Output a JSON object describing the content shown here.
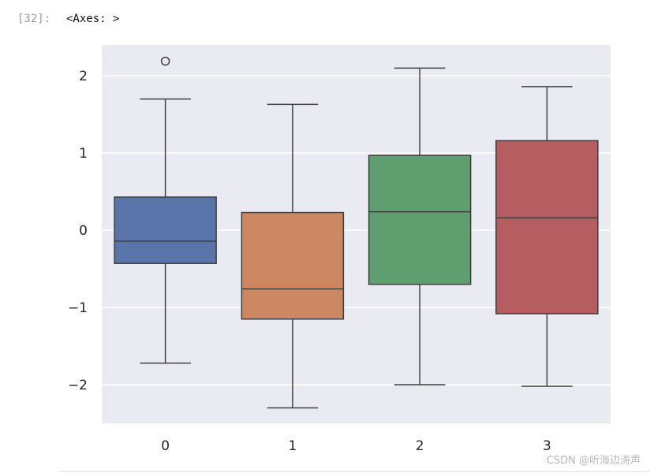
{
  "cell": {
    "prompt": "[32]:",
    "output": "<Axes: >"
  },
  "watermark": "CSDN @听海边涛声",
  "chart_data": {
    "type": "boxplot",
    "title": "",
    "xlabel": "",
    "ylabel": "",
    "categories": [
      "0",
      "1",
      "2",
      "3"
    ],
    "ylim": [
      -2.5,
      2.4
    ],
    "yticks": [
      -2,
      -1,
      0,
      1,
      2
    ],
    "ytick_labels": [
      "−2",
      "−1",
      "0",
      "1",
      "2"
    ],
    "grid": true,
    "style": "seaborn-darkgrid",
    "boxes": [
      {
        "category": "0",
        "whisker_low": -1.72,
        "q1": -0.43,
        "median": -0.14,
        "q3": 0.43,
        "whisker_high": 1.7,
        "outliers": [
          2.19
        ],
        "color": "#5874a8"
      },
      {
        "category": "1",
        "whisker_low": -2.3,
        "q1": -1.15,
        "median": -0.76,
        "q3": 0.23,
        "whisker_high": 1.63,
        "outliers": [],
        "color": "#cc8862"
      },
      {
        "category": "2",
        "whisker_low": -2.0,
        "q1": -0.7,
        "median": 0.24,
        "q3": 0.97,
        "whisker_high": 2.1,
        "outliers": [],
        "color": "#5f9e6e"
      },
      {
        "category": "3",
        "whisker_low": -2.02,
        "q1": -1.08,
        "median": 0.16,
        "q3": 1.16,
        "whisker_high": 1.86,
        "outliers": [],
        "color": "#b55d60"
      }
    ]
  }
}
